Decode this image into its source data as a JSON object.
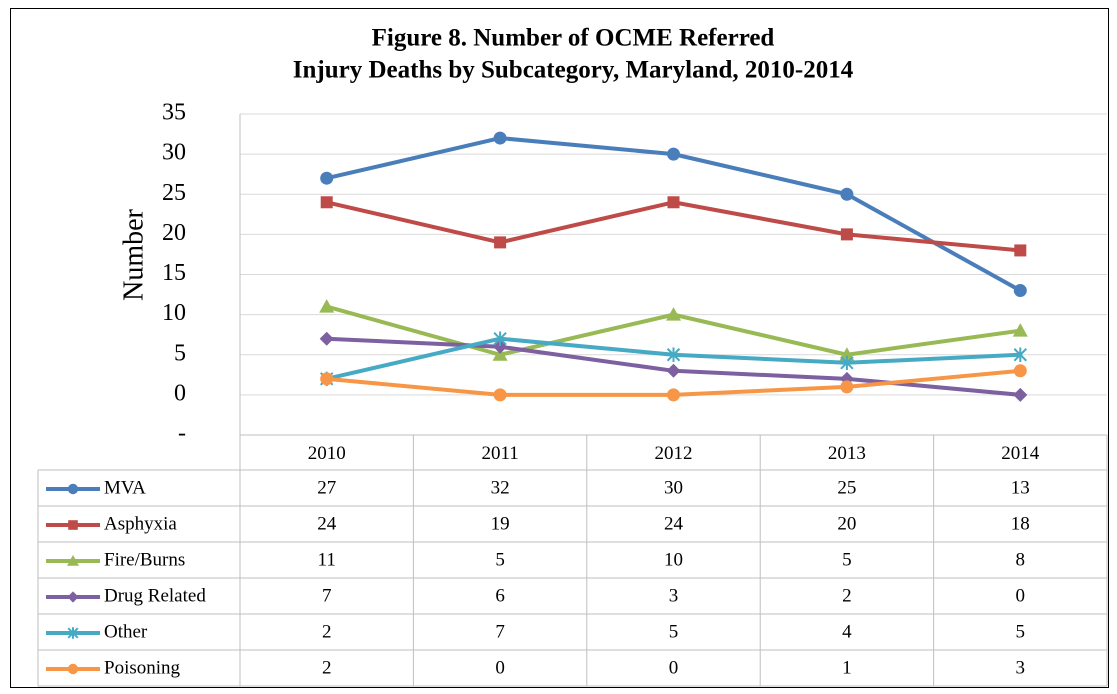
{
  "chart_data": {
    "type": "line",
    "title": [
      "Figure 8. Number of OCME Referred",
      "Injury Deaths by Subcategory, Maryland, 2010-2014"
    ],
    "y_label": "Number",
    "categories": [
      "2010",
      "2011",
      "2012",
      "2013",
      "2014"
    ],
    "series": [
      {
        "name": "MVA",
        "color": "#4a7ebb",
        "marker": "circle",
        "values": [
          27,
          32,
          30,
          25,
          13
        ]
      },
      {
        "name": "Asphyxia",
        "color": "#be4b48",
        "marker": "square",
        "values": [
          24,
          19,
          24,
          20,
          18
        ]
      },
      {
        "name": "Fire/Burns",
        "color": "#98b954",
        "marker": "triangle",
        "values": [
          11,
          5,
          10,
          5,
          8
        ]
      },
      {
        "name": "Drug Related",
        "color": "#7d60a0",
        "marker": "diamond",
        "values": [
          7,
          6,
          3,
          2,
          0
        ]
      },
      {
        "name": "Other",
        "color": "#46aac5",
        "marker": "asterisk",
        "values": [
          2,
          7,
          5,
          4,
          5
        ]
      },
      {
        "name": "Poisoning",
        "color": "#f79646",
        "marker": "circle",
        "values": [
          2,
          0,
          0,
          1,
          3
        ]
      }
    ],
    "ylim": [
      -5,
      35
    ],
    "yticks": [
      {
        "value": -5,
        "label": "-"
      },
      0,
      5,
      10,
      15,
      20,
      25,
      30,
      35
    ],
    "grid": true,
    "data_table": true
  }
}
